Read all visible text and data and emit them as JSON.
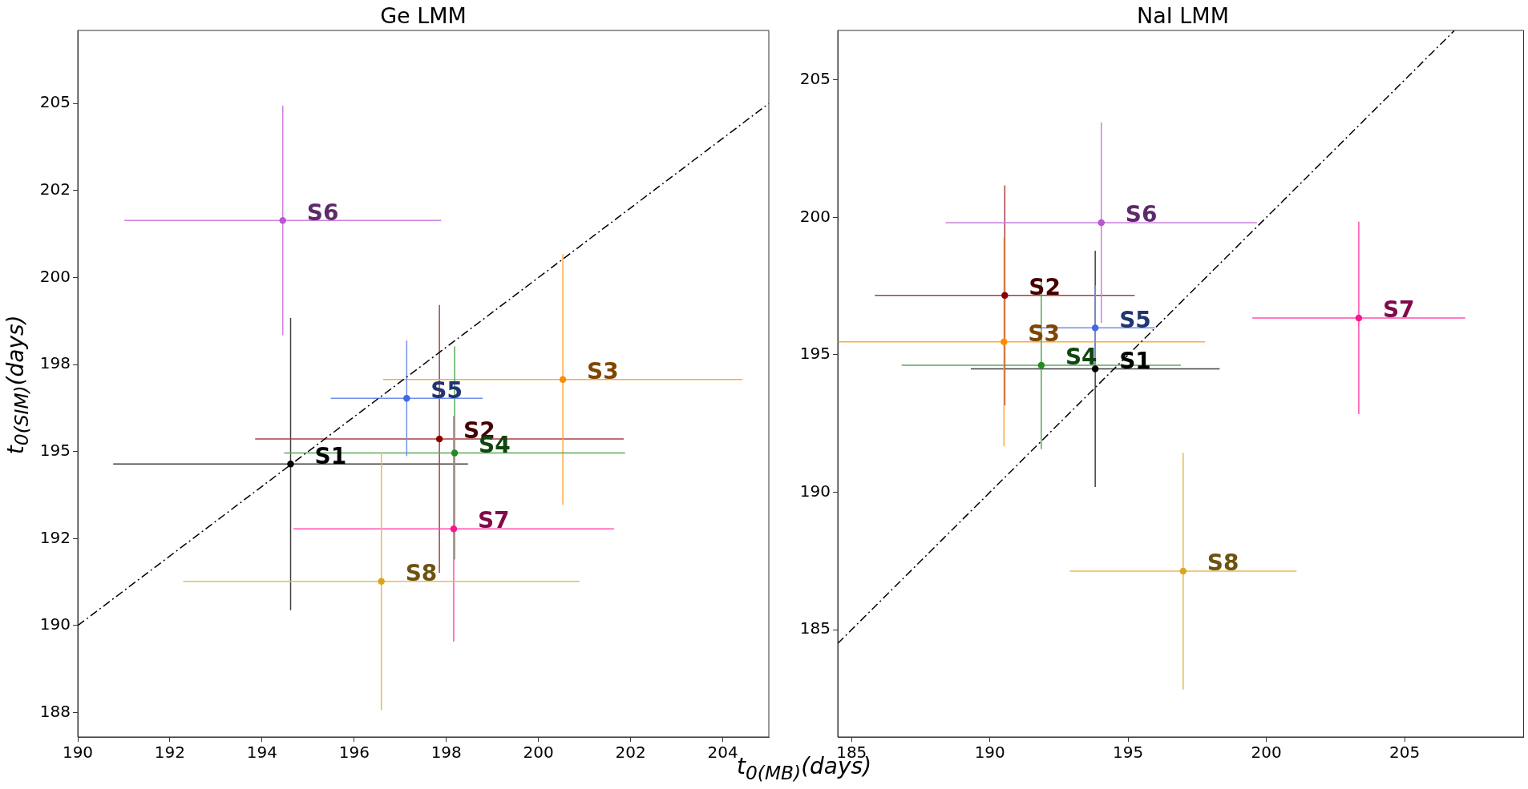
{
  "chart_data": [
    {
      "type": "scatter",
      "title": "Ge LMM",
      "ylabel": "t$_{0(SIM)}$(days)",
      "xlabel": "t$_{0(MB)}$(days)",
      "xlim": [
        190,
        205
      ],
      "xticks": [
        190,
        192,
        194,
        196,
        198,
        200,
        202,
        204
      ],
      "ylim": [
        186.8,
        207.1
      ],
      "yticks": [
        {
          "value": 187.5,
          "label": "188"
        },
        190,
        {
          "value": 192.5,
          "label": "192"
        },
        195,
        {
          "value": 197.5,
          "label": "198"
        },
        200,
        {
          "value": 202.5,
          "label": "202"
        },
        205
      ],
      "grid": false,
      "legend": false,
      "marker": "circle",
      "series": [
        {
          "type": "line",
          "color": "#000000",
          "x": [
            190,
            205
          ],
          "values": [
            190,
            205
          ],
          "line_style": "dashed",
          "marker": "none"
        },
        {
          "name": "S1",
          "color": "#000000",
          "x": [
            194.62
          ],
          "values": [
            194.64
          ],
          "xerrors": [
            3.85
          ],
          "errors": [
            4.2
          ]
        },
        {
          "name": "S2",
          "color": "#8b0000",
          "x": [
            197.85
          ],
          "values": [
            195.36
          ],
          "xerrors": [
            4.0
          ],
          "errors": [
            3.85
          ]
        },
        {
          "name": "S3",
          "color": "#ff8c00",
          "x": [
            200.53
          ],
          "values": [
            197.07
          ],
          "xerrors": [
            3.9
          ],
          "errors": [
            3.6
          ]
        },
        {
          "name": "S4",
          "color": "#228b22",
          "x": [
            198.18
          ],
          "values": [
            194.96
          ],
          "xerrors": [
            3.7
          ],
          "errors": [
            3.06
          ]
        },
        {
          "name": "S5",
          "color": "#4169e1",
          "x": [
            197.14
          ],
          "values": [
            196.53
          ],
          "xerrors": [
            1.65
          ],
          "errors": [
            1.66
          ]
        },
        {
          "name": "S6",
          "color": "#ba55d3",
          "x": [
            194.45
          ],
          "values": [
            201.64
          ],
          "xerrors": [
            3.44
          ],
          "errors": [
            3.3
          ]
        },
        {
          "name": "S7",
          "color": "#ff1493",
          "x": [
            198.16
          ],
          "values": [
            192.78
          ],
          "xerrors": [
            3.48
          ],
          "errors": [
            3.24
          ]
        },
        {
          "name": "S8",
          "color": "#daa520",
          "x": [
            196.59
          ],
          "values": [
            191.27
          ],
          "xerrors": [
            4.3
          ],
          "errors": [
            3.7
          ]
        }
      ]
    },
    {
      "type": "scatter",
      "title": "NaI LMM",
      "xlim": [
        184.5,
        209.3
      ],
      "xticks": [
        185,
        190,
        195,
        200,
        205
      ],
      "ylim": [
        181.1,
        206.8
      ],
      "yticks": [
        185,
        190,
        195,
        200,
        205
      ],
      "grid": false,
      "legend": false,
      "marker": "circle",
      "series": [
        {
          "type": "line",
          "color": "#000000",
          "x": [
            184.5,
            206.8
          ],
          "values": [
            184.5,
            206.8
          ],
          "line_style": "dashed",
          "marker": "none"
        },
        {
          "name": "S1",
          "color": "#000000",
          "x": [
            193.81
          ],
          "values": [
            194.49
          ],
          "xerrors": [
            4.5
          ],
          "errors": [
            4.3
          ]
        },
        {
          "name": "S2",
          "color": "#8b0000",
          "x": [
            190.54
          ],
          "values": [
            197.16
          ],
          "xerrors": [
            4.7
          ],
          "errors": [
            4.0
          ]
        },
        {
          "name": "S3",
          "color": "#ff8c00",
          "x": [
            190.51
          ],
          "values": [
            195.47
          ],
          "xerrors": [
            [
              184.5,
              197.78
            ]
          ],
          "errors": [
            3.8
          ]
        },
        {
          "name": "S4",
          "color": "#228b22",
          "x": [
            191.86
          ],
          "values": [
            194.62
          ],
          "xerrors": [
            5.05
          ],
          "errors": [
            3.05
          ]
        },
        {
          "name": "S5",
          "color": "#4169e1",
          "x": [
            193.81
          ],
          "values": [
            195.98
          ],
          "xerrors": [
            2.16
          ],
          "errors": [
            1.55
          ]
        },
        {
          "name": "S6",
          "color": "#ba55d3",
          "x": [
            194.03
          ],
          "values": [
            199.81
          ],
          "xerrors": [
            5.63
          ],
          "errors": [
            3.65
          ]
        },
        {
          "name": "S7",
          "color": "#ff1493",
          "x": [
            203.34
          ],
          "values": [
            196.34
          ],
          "xerrors": [
            3.85
          ],
          "errors": [
            3.5
          ]
        },
        {
          "name": "S8",
          "color": "#daa520",
          "x": [
            196.99
          ],
          "values": [
            187.13
          ],
          "xerrors": [
            4.1
          ],
          "errors": [
            4.3
          ]
        }
      ]
    }
  ]
}
